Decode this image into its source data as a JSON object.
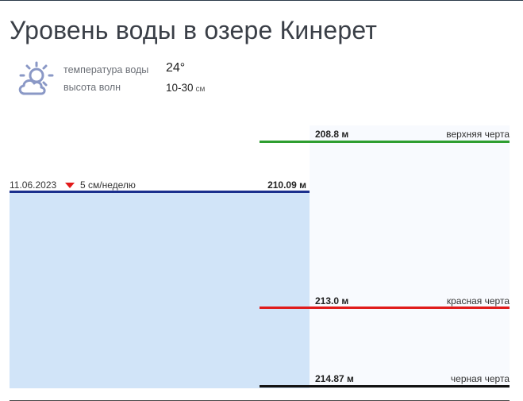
{
  "page": {
    "title": "Уровень воды в озере Кинерет"
  },
  "weather": {
    "icon": "partly-cloudy-icon",
    "water_temp_label": "температура воды",
    "water_temp_value": "24°",
    "waves_label": "высота волн",
    "waves_value": "10-30",
    "waves_unit": "см"
  },
  "current": {
    "date": "11.06.2023",
    "trend_icon": "down-triangle-icon",
    "trend_text": "5 см/неделю",
    "level_text": "210.09 м",
    "line_color": "#1a2f8e",
    "fill_color": "#d1e4f8"
  },
  "reference_levels": [
    {
      "value": "208.8 м",
      "name": "верхняя черта",
      "color": "#2e9e30"
    },
    {
      "value": "213.0 м",
      "name": "красная черта",
      "color": "#e01b1b"
    },
    {
      "value": "214.87 м",
      "name": "черная черта",
      "color": "#111111"
    }
  ],
  "colors": {
    "trend_down": "#e21a1a",
    "panel_bg": "#f8fafe"
  }
}
